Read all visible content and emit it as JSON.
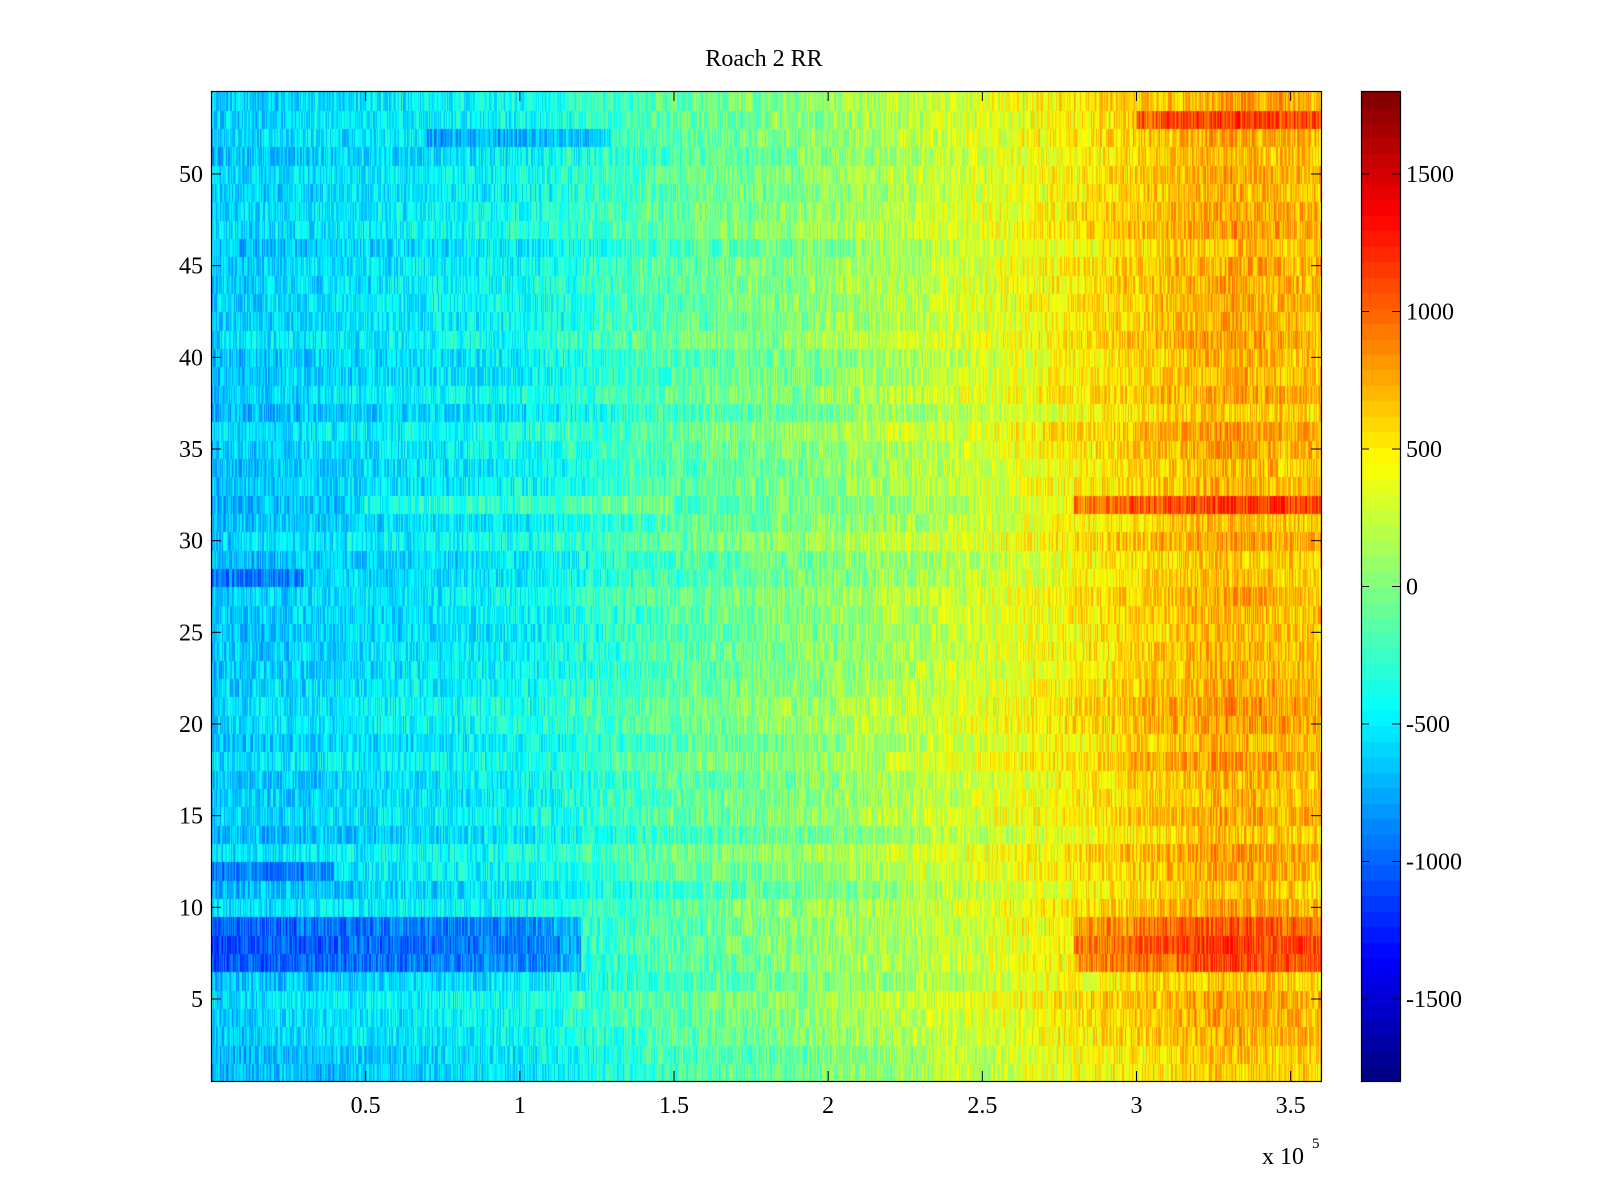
{
  "chart_data": {
    "type": "heatmap",
    "title": "Roach 2 RR",
    "xlabel": "",
    "ylabel": "",
    "x_multiplier_label": "x 10",
    "x_multiplier_exponent": "5",
    "xlim": [
      0,
      3.6
    ],
    "ylim": [
      0.5,
      54.5
    ],
    "x_ticks": [
      0.5,
      1,
      1.5,
      2,
      2.5,
      3,
      3.5
    ],
    "x_tick_labels": [
      "0.5",
      "1",
      "1.5",
      "2",
      "2.5",
      "3",
      "3.5"
    ],
    "y_ticks": [
      5,
      10,
      15,
      20,
      25,
      30,
      35,
      40,
      45,
      50
    ],
    "y_tick_labels": [
      "5",
      "10",
      "15",
      "20",
      "25",
      "30",
      "35",
      "40",
      "45",
      "50"
    ],
    "n_rows": 54,
    "colormap": "jet",
    "clim": [
      -1800,
      1800
    ],
    "colorbar": {
      "ticks": [
        -1500,
        -1000,
        -500,
        0,
        500,
        1000,
        1500
      ],
      "tick_labels": [
        "-1500",
        "-1000",
        "-500",
        "0",
        "500",
        "1000",
        "1500"
      ]
    },
    "mean_trend": {
      "x": [
        0,
        0.5,
        1.0,
        1.5,
        2.0,
        2.5,
        3.0,
        3.3,
        3.6
      ],
      "value": [
        -650,
        -550,
        -450,
        -150,
        50,
        300,
        600,
        750,
        650
      ]
    },
    "row_offsets": [
      {
        "row": 7,
        "offset": -400,
        "xrange": [
          0,
          1.2
        ]
      },
      {
        "row": 8,
        "offset": -450,
        "xrange": [
          0,
          1.2
        ]
      },
      {
        "row": 9,
        "offset": -400,
        "xrange": [
          0,
          1.2
        ]
      },
      {
        "row": 7,
        "offset": 350,
        "xrange": [
          2.8,
          3.6
        ]
      },
      {
        "row": 8,
        "offset": 400,
        "xrange": [
          2.8,
          3.6
        ]
      },
      {
        "row": 9,
        "offset": 300,
        "xrange": [
          2.8,
          3.6
        ]
      },
      {
        "row": 32,
        "offset": 250,
        "xrange": [
          0.5,
          1.5
        ]
      },
      {
        "row": 32,
        "offset": 500,
        "xrange": [
          2.8,
          3.6
        ]
      },
      {
        "row": 52,
        "offset": -300,
        "xrange": [
          0.7,
          1.3
        ]
      },
      {
        "row": 53,
        "offset": 400,
        "xrange": [
          3.0,
          3.6
        ]
      },
      {
        "row": 12,
        "offset": -300,
        "xrange": [
          0,
          0.4
        ]
      },
      {
        "row": 28,
        "offset": -250,
        "xrange": [
          0,
          0.3
        ]
      }
    ],
    "noise_amplitude": 260
  }
}
